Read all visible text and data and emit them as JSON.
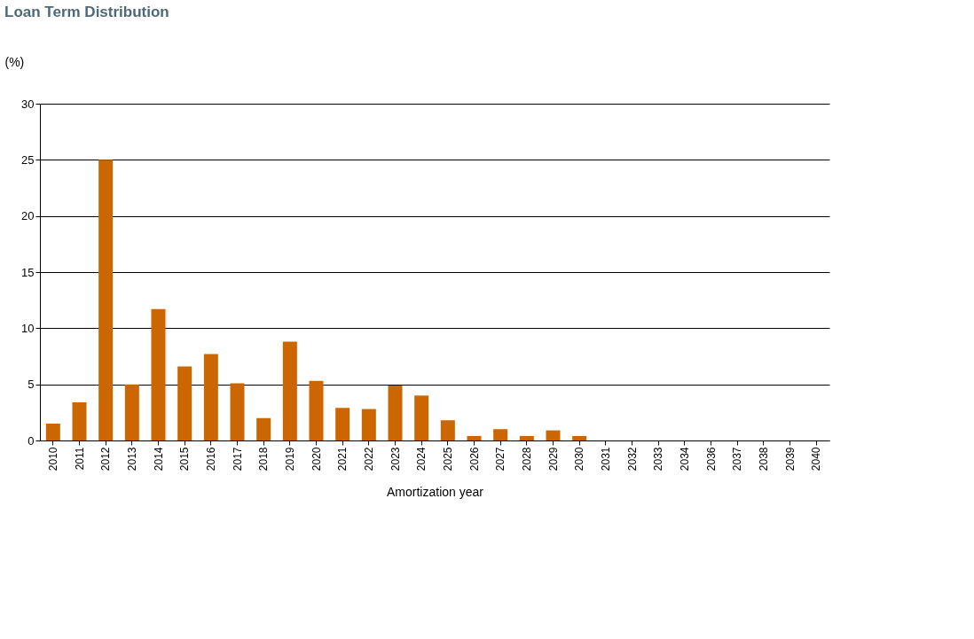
{
  "chart_data": {
    "type": "bar",
    "title": "Loan Term Distribution",
    "xlabel": "Amortization year",
    "ylabel": "(%)",
    "categories": [
      "2010",
      "2011",
      "2012",
      "2013",
      "2014",
      "2015",
      "2016",
      "2017",
      "2018",
      "2019",
      "2020",
      "2021",
      "2022",
      "2023",
      "2024",
      "2025",
      "2026",
      "2027",
      "2028",
      "2029",
      "2030",
      "2031",
      "2032",
      "2033",
      "2034",
      "2036",
      "2037",
      "2038",
      "2039",
      "2040"
    ],
    "values": [
      1.5,
      3.4,
      25,
      5.0,
      11.7,
      6.6,
      7.7,
      5.1,
      2.0,
      8.8,
      5.3,
      2.9,
      2.8,
      4.9,
      4.0,
      1.8,
      0.4,
      1.0,
      0.4,
      0.9,
      0.4,
      0,
      0,
      0,
      0,
      0,
      0,
      0,
      0,
      0
    ],
    "color": "#cc6600",
    "ylim": [
      0,
      30
    ],
    "yticks": [
      0,
      5,
      10,
      15,
      20,
      25,
      30
    ],
    "grid": "y"
  }
}
